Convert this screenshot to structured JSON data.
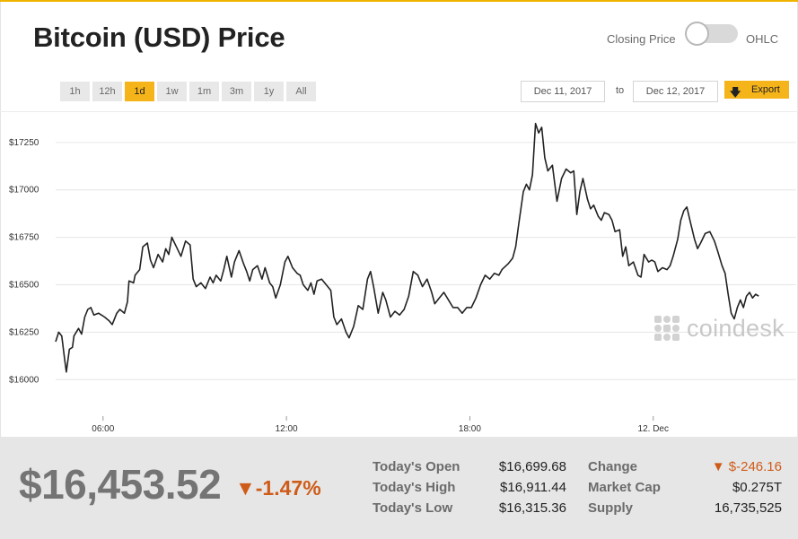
{
  "header": {
    "title": "Bitcoin (USD) Price",
    "mode_left": "Closing Price",
    "mode_right": "OHLC"
  },
  "toolbar": {
    "ranges": [
      "1h",
      "12h",
      "1d",
      "1w",
      "1m",
      "3m",
      "1y",
      "All"
    ],
    "active_range": "1d",
    "date_from": "Dec 11, 2017",
    "to_label": "to",
    "date_to": "Dec 12, 2017",
    "export_label": "Export",
    "accent_color": "#f6b41b"
  },
  "chart_data": {
    "type": "line",
    "y_tick_labels": [
      "$16000",
      "$16250",
      "$16500",
      "$16750",
      "$17000",
      "$17250"
    ],
    "y_ticks": [
      16000,
      16250,
      16500,
      16750,
      17000,
      17250
    ],
    "x_tick_labels": [
      "06:00",
      "12:00",
      "18:00",
      "12. Dec"
    ],
    "x_ticks": [
      6,
      12,
      18,
      24
    ],
    "x_range": [
      4.45,
      28.5
    ],
    "ylim": [
      15850,
      17410
    ],
    "grid": true,
    "line_color": "#222222",
    "series": [
      {
        "points": [
          [
            4.45,
            16200
          ],
          [
            4.55,
            16250
          ],
          [
            4.65,
            16230
          ],
          [
            4.75,
            16100
          ],
          [
            4.8,
            16040
          ],
          [
            4.9,
            16160
          ],
          [
            5.0,
            16170
          ],
          [
            5.05,
            16230
          ],
          [
            5.2,
            16270
          ],
          [
            5.3,
            16240
          ],
          [
            5.4,
            16330
          ],
          [
            5.5,
            16370
          ],
          [
            5.6,
            16380
          ],
          [
            5.7,
            16340
          ],
          [
            5.85,
            16350
          ],
          [
            5.95,
            16340
          ],
          [
            6.05,
            16330
          ],
          [
            6.2,
            16310
          ],
          [
            6.3,
            16290
          ],
          [
            6.45,
            16350
          ],
          [
            6.55,
            16370
          ],
          [
            6.7,
            16350
          ],
          [
            6.8,
            16410
          ],
          [
            6.85,
            16520
          ],
          [
            7.0,
            16510
          ],
          [
            7.05,
            16550
          ],
          [
            7.2,
            16580
          ],
          [
            7.3,
            16700
          ],
          [
            7.45,
            16720
          ],
          [
            7.55,
            16630
          ],
          [
            7.65,
            16590
          ],
          [
            7.8,
            16660
          ],
          [
            7.95,
            16620
          ],
          [
            8.05,
            16690
          ],
          [
            8.15,
            16660
          ],
          [
            8.25,
            16750
          ],
          [
            8.4,
            16700
          ],
          [
            8.55,
            16650
          ],
          [
            8.7,
            16730
          ],
          [
            8.85,
            16710
          ],
          [
            8.95,
            16530
          ],
          [
            9.05,
            16490
          ],
          [
            9.2,
            16510
          ],
          [
            9.35,
            16480
          ],
          [
            9.5,
            16540
          ],
          [
            9.6,
            16510
          ],
          [
            9.7,
            16550
          ],
          [
            9.85,
            16520
          ],
          [
            9.95,
            16580
          ],
          [
            10.05,
            16650
          ],
          [
            10.2,
            16540
          ],
          [
            10.3,
            16620
          ],
          [
            10.45,
            16680
          ],
          [
            10.6,
            16610
          ],
          [
            10.7,
            16570
          ],
          [
            10.8,
            16520
          ],
          [
            10.9,
            16580
          ],
          [
            11.05,
            16600
          ],
          [
            11.2,
            16530
          ],
          [
            11.3,
            16590
          ],
          [
            11.45,
            16510
          ],
          [
            11.55,
            16490
          ],
          [
            11.65,
            16430
          ],
          [
            11.8,
            16500
          ],
          [
            11.95,
            16620
          ],
          [
            12.05,
            16650
          ],
          [
            12.2,
            16590
          ],
          [
            12.35,
            16560
          ],
          [
            12.45,
            16550
          ],
          [
            12.55,
            16500
          ],
          [
            12.7,
            16470
          ],
          [
            12.8,
            16510
          ],
          [
            12.9,
            16450
          ],
          [
            13.0,
            16520
          ],
          [
            13.15,
            16530
          ],
          [
            13.3,
            16500
          ],
          [
            13.45,
            16470
          ],
          [
            13.55,
            16330
          ],
          [
            13.65,
            16290
          ],
          [
            13.8,
            16320
          ],
          [
            13.95,
            16250
          ],
          [
            14.05,
            16220
          ],
          [
            14.2,
            16280
          ],
          [
            14.35,
            16390
          ],
          [
            14.5,
            16370
          ],
          [
            14.65,
            16530
          ],
          [
            14.75,
            16570
          ],
          [
            14.85,
            16490
          ],
          [
            15.0,
            16350
          ],
          [
            15.15,
            16460
          ],
          [
            15.25,
            16420
          ],
          [
            15.4,
            16330
          ],
          [
            15.55,
            16360
          ],
          [
            15.7,
            16340
          ],
          [
            15.85,
            16370
          ],
          [
            16.0,
            16440
          ],
          [
            16.15,
            16570
          ],
          [
            16.3,
            16550
          ],
          [
            16.45,
            16490
          ],
          [
            16.6,
            16530
          ],
          [
            16.75,
            16460
          ],
          [
            16.85,
            16400
          ],
          [
            17.0,
            16430
          ],
          [
            17.15,
            16460
          ],
          [
            17.3,
            16420
          ],
          [
            17.45,
            16380
          ],
          [
            17.6,
            16380
          ],
          [
            17.75,
            16350
          ],
          [
            17.9,
            16380
          ],
          [
            18.05,
            16380
          ],
          [
            18.2,
            16430
          ],
          [
            18.35,
            16500
          ],
          [
            18.5,
            16550
          ],
          [
            18.65,
            16530
          ],
          [
            18.8,
            16560
          ],
          [
            18.95,
            16550
          ],
          [
            19.05,
            16580
          ],
          [
            19.25,
            16610
          ],
          [
            19.4,
            16640
          ],
          [
            19.5,
            16700
          ],
          [
            19.6,
            16820
          ],
          [
            19.75,
            16990
          ],
          [
            19.85,
            17030
          ],
          [
            19.95,
            17000
          ],
          [
            20.05,
            17080
          ],
          [
            20.15,
            17350
          ],
          [
            20.25,
            17300
          ],
          [
            20.35,
            17330
          ],
          [
            20.45,
            17170
          ],
          [
            20.55,
            17100
          ],
          [
            20.7,
            17130
          ],
          [
            20.85,
            16940
          ],
          [
            21.0,
            17060
          ],
          [
            21.15,
            17110
          ],
          [
            21.3,
            17090
          ],
          [
            21.4,
            17100
          ],
          [
            21.5,
            16870
          ],
          [
            21.6,
            16990
          ],
          [
            21.7,
            17060
          ],
          [
            21.85,
            16950
          ],
          [
            21.95,
            16900
          ],
          [
            22.05,
            16920
          ],
          [
            22.2,
            16860
          ],
          [
            22.3,
            16840
          ],
          [
            22.4,
            16880
          ],
          [
            22.55,
            16870
          ],
          [
            22.65,
            16840
          ],
          [
            22.75,
            16780
          ],
          [
            22.9,
            16790
          ],
          [
            23.0,
            16650
          ],
          [
            23.1,
            16700
          ],
          [
            23.2,
            16600
          ],
          [
            23.35,
            16620
          ],
          [
            23.5,
            16550
          ],
          [
            23.6,
            16540
          ],
          [
            23.7,
            16660
          ],
          [
            23.85,
            16620
          ],
          [
            23.95,
            16630
          ],
          [
            24.05,
            16620
          ],
          [
            24.15,
            16570
          ],
          [
            24.3,
            16590
          ],
          [
            24.45,
            16580
          ],
          [
            24.55,
            16600
          ],
          [
            24.65,
            16650
          ],
          [
            24.8,
            16740
          ],
          [
            24.9,
            16840
          ],
          [
            25.0,
            16890
          ],
          [
            25.1,
            16910
          ],
          [
            25.2,
            16840
          ],
          [
            25.35,
            16740
          ],
          [
            25.45,
            16690
          ],
          [
            25.55,
            16720
          ],
          [
            25.7,
            16770
          ],
          [
            25.85,
            16780
          ],
          [
            26.0,
            16730
          ],
          [
            26.1,
            16680
          ],
          [
            26.25,
            16600
          ],
          [
            26.35,
            16560
          ],
          [
            26.45,
            16450
          ],
          [
            26.55,
            16350
          ],
          [
            26.65,
            16320
          ],
          [
            26.75,
            16380
          ],
          [
            26.85,
            16420
          ],
          [
            26.95,
            16380
          ],
          [
            27.05,
            16440
          ],
          [
            27.15,
            16460
          ],
          [
            27.25,
            16430
          ],
          [
            27.35,
            16450
          ],
          [
            27.45,
            16440
          ]
        ]
      }
    ]
  },
  "watermark": {
    "text": "coindesk"
  },
  "summary": {
    "price": "$16,453.52",
    "change_pct": "▼-1.47%",
    "negative_color": "#cf5b18",
    "stats": [
      {
        "label": "Today's Open",
        "value": "$16,699.68"
      },
      {
        "label": "Today's High",
        "value": "$16,911.44"
      },
      {
        "label": "Today's Low",
        "value": "$16,315.36"
      },
      {
        "label": "Change",
        "value": "▼ $-246.16"
      },
      {
        "label": "Market Cap",
        "value": "$0.275T"
      },
      {
        "label": "Supply",
        "value": "16,735,525"
      }
    ]
  }
}
